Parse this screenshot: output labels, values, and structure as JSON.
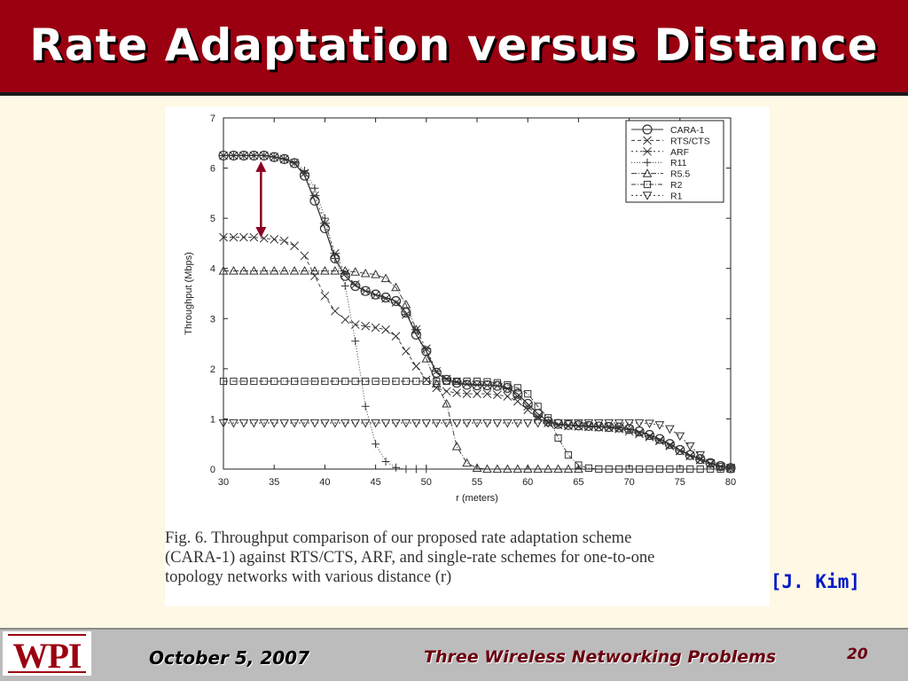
{
  "slide": {
    "title": "Rate Adaptation versus Distance",
    "citation": "[J. Kim]",
    "footer": {
      "date": "October 5, 2007",
      "title": "Three Wireless Networking Problems",
      "page": "20",
      "logo": "WPI"
    },
    "caption": [
      "Fig. 6.    Throughput comparison of our proposed rate adaptation scheme",
      "(CARA-1) against RTS/CTS, ARF, and single-rate schemes for one-to-one",
      "topology networks with various distance (r)"
    ],
    "colors": {
      "title_bar": "#9b0011",
      "arrow": "#8b0020",
      "citation": "#0018c8"
    }
  },
  "chart_data": {
    "type": "line",
    "xlabel": "r (meters)",
    "ylabel": "Throughput (Mbps)",
    "xlim": [
      30,
      80
    ],
    "ylim": [
      0,
      7
    ],
    "xticks": [
      30,
      35,
      40,
      45,
      50,
      55,
      60,
      65,
      70,
      75,
      80
    ],
    "yticks": [
      0,
      1,
      2,
      3,
      4,
      5,
      6,
      7
    ],
    "grid": false,
    "legend_position": "top-right",
    "annotation": {
      "type": "arrow",
      "x": 33.7,
      "y_from": 6.1,
      "y_to": 4.65,
      "note": "double-headed arrow"
    },
    "series": [
      {
        "name": "CARA-1",
        "marker": "circle",
        "dash": "",
        "x": [
          30,
          31,
          32,
          33,
          34,
          35,
          36,
          37,
          38,
          39,
          40,
          41,
          42,
          43,
          44,
          45,
          46,
          47,
          48,
          49,
          50,
          51,
          52,
          53,
          54,
          55,
          56,
          57,
          58,
          59,
          60,
          61,
          62,
          63,
          64,
          65,
          66,
          67,
          68,
          69,
          70,
          71,
          72,
          73,
          74,
          75,
          76,
          77,
          78,
          79,
          80
        ],
        "y": [
          6.25,
          6.25,
          6.25,
          6.25,
          6.25,
          6.22,
          6.18,
          6.1,
          5.85,
          5.35,
          4.8,
          4.2,
          3.85,
          3.65,
          3.55,
          3.48,
          3.42,
          3.35,
          3.12,
          2.68,
          2.35,
          1.92,
          1.78,
          1.72,
          1.68,
          1.67,
          1.67,
          1.66,
          1.62,
          1.5,
          1.3,
          1.1,
          0.95,
          0.9,
          0.88,
          0.87,
          0.86,
          0.85,
          0.84,
          0.83,
          0.8,
          0.75,
          0.68,
          0.6,
          0.5,
          0.38,
          0.28,
          0.2,
          0.12,
          0.06,
          0.02
        ]
      },
      {
        "name": "RTS/CTS",
        "marker": "x",
        "dash": "4,3",
        "x": [
          30,
          31,
          32,
          33,
          34,
          35,
          36,
          37,
          38,
          39,
          40,
          41,
          42,
          43,
          44,
          45,
          46,
          47,
          48,
          49,
          50,
          51,
          52,
          53,
          54,
          55,
          56,
          57,
          58,
          59,
          60,
          61,
          62,
          63,
          64,
          65,
          66,
          67,
          68,
          69,
          70,
          71,
          72,
          73,
          74,
          75,
          76,
          77,
          78,
          79,
          80
        ],
        "y": [
          4.62,
          4.62,
          4.62,
          4.62,
          4.6,
          4.58,
          4.55,
          4.45,
          4.25,
          3.85,
          3.45,
          3.15,
          2.98,
          2.88,
          2.85,
          2.82,
          2.78,
          2.65,
          2.35,
          2.05,
          1.78,
          1.62,
          1.55,
          1.52,
          1.5,
          1.5,
          1.5,
          1.48,
          1.45,
          1.35,
          1.18,
          1.02,
          0.92,
          0.88,
          0.86,
          0.85,
          0.84,
          0.83,
          0.82,
          0.8,
          0.75,
          0.7,
          0.64,
          0.56,
          0.46,
          0.36,
          0.26,
          0.18,
          0.1,
          0.05,
          0.02
        ]
      },
      {
        "name": "ARF",
        "marker": "asterisk",
        "dash": "2,3",
        "x": [
          30,
          31,
          32,
          33,
          34,
          35,
          36,
          37,
          38,
          39,
          40,
          41,
          42,
          43,
          44,
          45,
          46,
          47,
          48,
          49,
          50,
          51,
          52,
          53,
          54,
          55,
          56,
          57,
          58,
          59,
          60,
          61,
          62,
          63,
          64,
          65,
          66,
          67,
          68,
          69,
          70,
          71,
          72,
          73,
          74,
          75,
          76,
          77,
          78,
          79,
          80
        ],
        "y": [
          6.25,
          6.25,
          6.25,
          6.25,
          6.25,
          6.22,
          6.18,
          6.1,
          5.9,
          5.45,
          4.9,
          4.3,
          3.9,
          3.68,
          3.55,
          3.47,
          3.4,
          3.32,
          3.08,
          2.78,
          2.4,
          1.95,
          1.8,
          1.74,
          1.7,
          1.68,
          1.67,
          1.66,
          1.6,
          1.45,
          1.25,
          1.05,
          0.92,
          0.88,
          0.87,
          0.86,
          0.85,
          0.84,
          0.83,
          0.82,
          0.79,
          0.73,
          0.66,
          0.58,
          0.48,
          0.37,
          0.27,
          0.19,
          0.11,
          0.05,
          0.02
        ]
      },
      {
        "name": "R11",
        "marker": "plus",
        "dash": "1,2",
        "x": [
          30,
          31,
          32,
          33,
          34,
          35,
          36,
          37,
          38,
          39,
          40,
          41,
          42,
          43,
          44,
          45,
          46,
          47,
          48,
          49,
          50
        ],
        "y": [
          6.25,
          6.25,
          6.25,
          6.25,
          6.25,
          6.22,
          6.18,
          6.12,
          5.95,
          5.6,
          5.0,
          4.2,
          3.65,
          2.55,
          1.25,
          0.5,
          0.15,
          0.03,
          0.0,
          0.0,
          0.0
        ]
      },
      {
        "name": "R5.5",
        "marker": "triangle-up",
        "dash": "6,2,1,2",
        "x": [
          30,
          31,
          32,
          33,
          34,
          35,
          36,
          37,
          38,
          39,
          40,
          41,
          42,
          43,
          44,
          45,
          46,
          47,
          48,
          49,
          50,
          51,
          52,
          53,
          54,
          55,
          56,
          57,
          58,
          59,
          60,
          61,
          62,
          63,
          64,
          65
        ],
        "y": [
          3.95,
          3.95,
          3.95,
          3.95,
          3.95,
          3.95,
          3.95,
          3.95,
          3.95,
          3.95,
          3.95,
          3.95,
          3.95,
          3.93,
          3.9,
          3.88,
          3.8,
          3.62,
          3.28,
          2.78,
          2.2,
          1.7,
          1.3,
          0.45,
          0.12,
          0.02,
          0.0,
          0.0,
          0.0,
          0.0,
          0.0,
          0.0,
          0.0,
          0.0,
          0.0,
          0.0
        ]
      },
      {
        "name": "R2",
        "marker": "square",
        "dash": "5,2,1,2",
        "x": [
          30,
          31,
          32,
          33,
          34,
          35,
          36,
          37,
          38,
          39,
          40,
          41,
          42,
          43,
          44,
          45,
          46,
          47,
          48,
          49,
          50,
          51,
          52,
          53,
          54,
          55,
          56,
          57,
          58,
          59,
          60,
          61,
          62,
          63,
          64,
          65,
          66,
          67,
          68,
          69,
          70,
          71,
          72,
          73,
          74,
          75,
          76,
          77,
          78,
          79,
          80
        ],
        "y": [
          1.75,
          1.75,
          1.75,
          1.75,
          1.75,
          1.75,
          1.75,
          1.75,
          1.75,
          1.75,
          1.75,
          1.75,
          1.75,
          1.75,
          1.75,
          1.75,
          1.75,
          1.75,
          1.75,
          1.75,
          1.75,
          1.75,
          1.75,
          1.75,
          1.75,
          1.75,
          1.74,
          1.72,
          1.68,
          1.62,
          1.5,
          1.25,
          1.02,
          0.62,
          0.28,
          0.08,
          0.02,
          0.0,
          0.0,
          0.0,
          0.0,
          0.0,
          0.0,
          0.0,
          0.0,
          0.0,
          0.0,
          0.0,
          0.0,
          0.0,
          0.0
        ]
      },
      {
        "name": "R1",
        "marker": "triangle-down",
        "dash": "2,3",
        "x": [
          30,
          31,
          32,
          33,
          34,
          35,
          36,
          37,
          38,
          39,
          40,
          41,
          42,
          43,
          44,
          45,
          46,
          47,
          48,
          49,
          50,
          51,
          52,
          53,
          54,
          55,
          56,
          57,
          58,
          59,
          60,
          61,
          62,
          63,
          64,
          65,
          66,
          67,
          68,
          69,
          70,
          71,
          72,
          73,
          74,
          75,
          76,
          77,
          78,
          79,
          80
        ],
        "y": [
          0.92,
          0.92,
          0.92,
          0.92,
          0.92,
          0.92,
          0.92,
          0.92,
          0.92,
          0.92,
          0.92,
          0.92,
          0.92,
          0.92,
          0.92,
          0.92,
          0.92,
          0.92,
          0.92,
          0.92,
          0.92,
          0.92,
          0.92,
          0.92,
          0.92,
          0.92,
          0.92,
          0.92,
          0.92,
          0.92,
          0.92,
          0.92,
          0.92,
          0.92,
          0.92,
          0.92,
          0.92,
          0.92,
          0.92,
          0.92,
          0.92,
          0.92,
          0.91,
          0.88,
          0.8,
          0.66,
          0.46,
          0.28,
          0.12,
          0.05,
          0.02
        ]
      }
    ]
  }
}
